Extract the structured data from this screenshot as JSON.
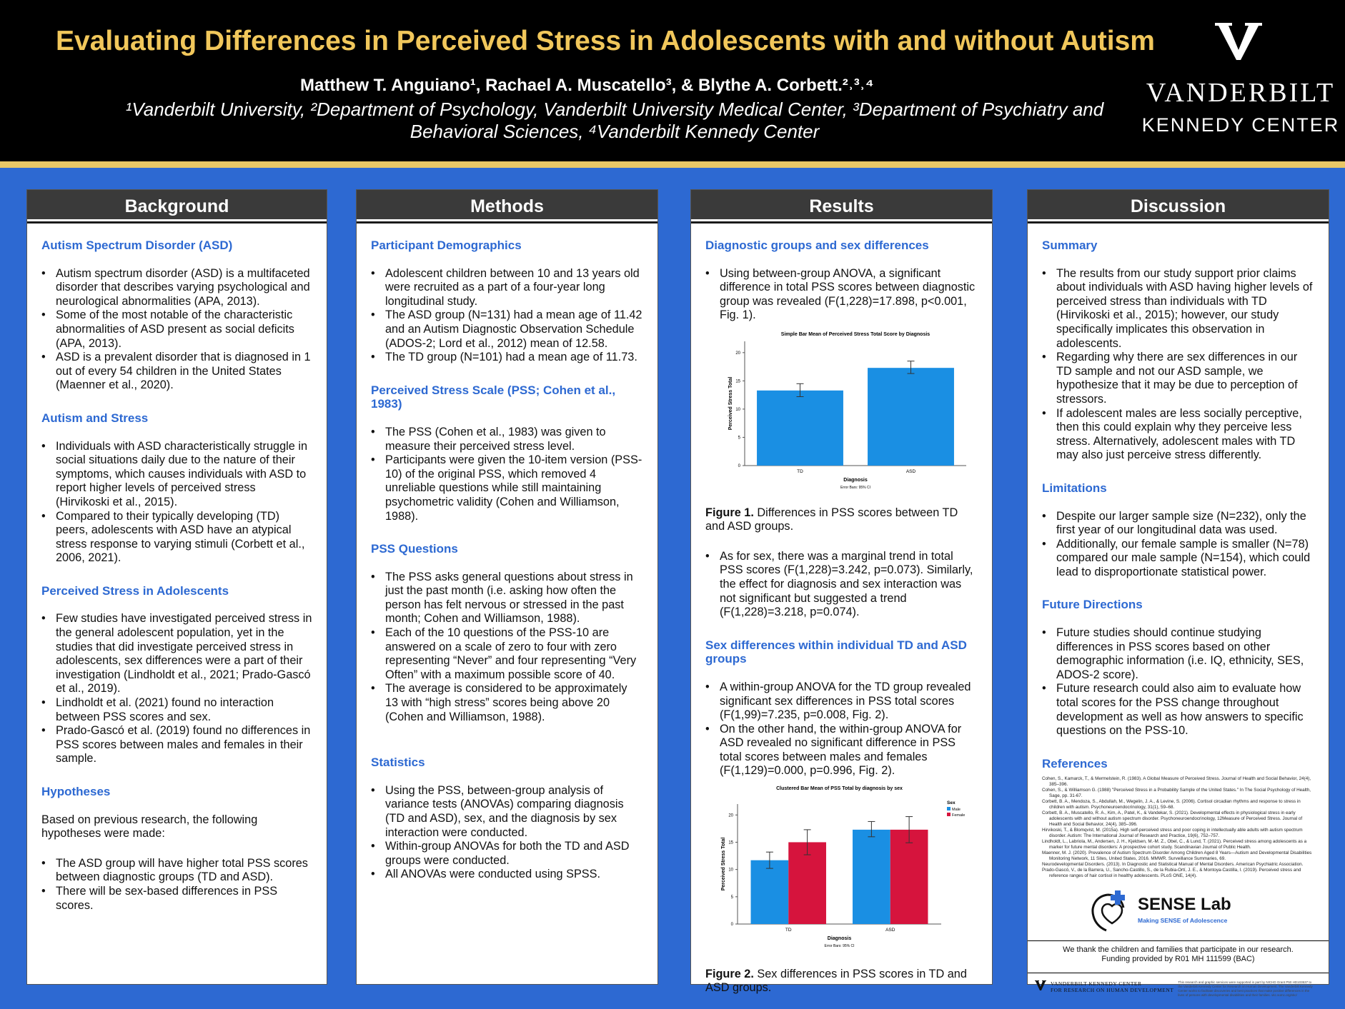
{
  "header": {
    "title": "Evaluating Differences in Perceived Stress in Adolescents with and without Autism",
    "authors": "Matthew T. Anguiano¹, Rachael A. Muscatello³, & Blythe A. Corbett.²˒³˒⁴",
    "affiliations_line1": "¹Vanderbilt University, ²Department of Psychology, Vanderbilt University Medical Center, ³Department of Psychiatry and",
    "affiliations_line2": "Behavioral Sciences, ⁴Vanderbilt Kennedy Center",
    "logo_name": "VANDERBILT",
    "logo_center": "KENNEDY CENTER",
    "logo_icon": "vanderbilt-v-oak-leaf-icon"
  },
  "background": {
    "heading": "Background",
    "sections": [
      {
        "title": "Autism Spectrum Disorder (ASD)",
        "bullets": [
          "Autism spectrum disorder (ASD) is a multifaceted disorder that describes varying psychological and neurological abnormalities (APA, 2013).",
          "Some of the most notable of the characteristic abnormalities of ASD present as social deficits (APA, 2013).",
          "ASD is a prevalent disorder that is diagnosed in 1 out of every 54 children in the United States (Maenner et al., 2020)."
        ]
      },
      {
        "title": "Autism and Stress",
        "bullets": [
          "Individuals with ASD characteristically struggle in social situations daily due to the nature of their symptoms, which causes individuals with ASD to report higher levels of perceived stress (Hirvikoski et al., 2015).",
          "Compared to their typically developing (TD) peers, adolescents with ASD have an atypical stress response to varying stimuli (Corbett et al., 2006, 2021)."
        ]
      },
      {
        "title": "Perceived Stress in Adolescents",
        "bullets": [
          "Few studies have investigated perceived stress in the general adolescent population, yet in the studies that did investigate perceived stress in adolescents, sex differences were a part of their investigation (Lindholdt et al., 2021; Prado-Gascó et al., 2019).",
          "Lindholdt et al. (2021) found no interaction between PSS scores and sex.",
          "Prado-Gascó et al. (2019) found no differences in PSS scores between males and females in their sample."
        ]
      }
    ],
    "hypotheses_title": "Hypotheses",
    "hypotheses_intro": "Based on previous research, the following hypotheses were made:",
    "hypotheses": [
      "The ASD group will have higher total PSS scores between diagnostic groups (TD and ASD).",
      "There will be sex-based differences in PSS scores."
    ]
  },
  "methods": {
    "heading": "Methods",
    "sections": [
      {
        "title": "Participant Demographics",
        "bullets": [
          "Adolescent children between 10 and 13 years old were recruited as a part of a four-year long longitudinal study.",
          "The ASD group (N=131) had a mean age of 11.42 and an Autism Diagnostic Observation Schedule (ADOS-2; Lord et al., 2012) mean of 12.58.",
          "The TD group (N=101) had a mean age of 11.73."
        ]
      },
      {
        "title": "Perceived Stress Scale (PSS; Cohen et al., 1983)",
        "bullets": [
          "The PSS (Cohen et al., 1983) was given to measure their perceived stress level.",
          "Participants were given the 10-item version (PSS-10) of the original PSS, which removed 4 unreliable questions while still maintaining psychometric validity (Cohen and Williamson, 1988)."
        ]
      },
      {
        "title": "PSS Questions",
        "bullets": [
          "The PSS asks general questions about stress in just the past month (i.e. asking how often the person has felt nervous or stressed in the past month; Cohen and Williamson, 1988).",
          "Each of the 10 questions of the PSS-10 are answered on a scale of zero to four with zero representing “Never” and four representing “Very Often” with a maximum possible score of 40.",
          "The average is considered to be approximately 13 with “high stress” scores being above 20 (Cohen and Williamson, 1988)."
        ]
      },
      {
        "title": "Statistics",
        "bullets": [
          "Using the PSS, between-group analysis of variance tests (ANOVAs) comparing diagnosis (TD and ASD), sex, and the diagnosis by sex interaction were conducted.",
          "Within-group ANOVAs for both the TD and ASD groups were conducted.",
          "All ANOVAs were conducted using SPSS."
        ]
      }
    ]
  },
  "results": {
    "heading": "Results",
    "sec1_title": "Diagnostic groups and sex differences",
    "sec1_bullets": [
      "Using between-group ANOVA, a significant difference in total PSS scores between diagnostic group was revealed (F(1,228)=17.898, p<0.001, Fig. 1)."
    ],
    "fig1_label": "Figure 1.",
    "fig1_caption": " Differences in PSS scores between TD and ASD groups.",
    "sec1_bullets_b": [
      "As for sex, there was a marginal trend in total PSS scores (F(1,228)=3.242, p=0.073). Similarly, the effect for diagnosis and sex interaction was not significant but suggested a trend (F(1,228)=3.218, p=0.074)."
    ],
    "sec2_title": "Sex differences within individual TD and ASD groups",
    "sec2_bullets": [
      "A within-group ANOVA for the TD group revealed significant sex differences in PSS total scores (F(1,99)=7.235, p=0.008, Fig. 2).",
      "On the other hand, the within-group ANOVA for ASD revealed no significant difference in PSS total scores between males and females (F(1,129)=0.000, p=0.996, Fig. 2)."
    ],
    "fig2_label": "Figure 2.",
    "fig2_caption": " Sex differences in PSS scores in TD and ASD groups."
  },
  "chart_data": [
    {
      "type": "bar",
      "title": "Simple Bar Mean of Perceived Stress Total Score by Diagnosis",
      "xlabel": "Diagnosis",
      "ylabel": "Perceived Stress Total",
      "note": "Error Bars: 95% CI",
      "categories": [
        "TD",
        "ASD"
      ],
      "values": [
        13.3,
        17.3
      ],
      "ci_low": [
        12.2,
        16.3
      ],
      "ci_high": [
        14.5,
        18.5
      ],
      "ylim": [
        0,
        22
      ],
      "yticks": [
        0,
        5,
        10,
        15,
        20
      ],
      "color": "#1a8fe3"
    },
    {
      "type": "bar",
      "title": "Clustered Bar Mean of PSS Total by diagnosis by sex",
      "xlabel": "Diagnosis",
      "ylabel": "Perceived Stress Total",
      "note": "Error Bars: 95% CI",
      "categories": [
        "TD",
        "ASD"
      ],
      "legend_title": "Sex",
      "series": [
        {
          "name": "Male",
          "values": [
            11.7,
            17.3
          ],
          "ci_low": [
            10.2,
            16.0
          ],
          "ci_high": [
            13.2,
            18.8
          ],
          "color": "#1a8fe3"
        },
        {
          "name": "Female",
          "values": [
            15.0,
            17.3
          ],
          "ci_low": [
            12.7,
            14.9
          ],
          "ci_high": [
            17.3,
            19.7
          ],
          "color": "#d6143d"
        }
      ],
      "ylim": [
        0,
        22
      ],
      "yticks": [
        0,
        5,
        10,
        15,
        20
      ]
    }
  ],
  "discussion": {
    "heading": "Discussion",
    "sections": [
      {
        "title": "Summary",
        "bullets": [
          "The results from our study support prior claims about individuals with ASD having higher levels of perceived stress than individuals with TD (Hirvikoski et al., 2015); however, our study specifically implicates this observation in adolescents.",
          "Regarding why there are sex differences in our TD sample and not our ASD sample, we hypothesize that it may be due to perception of stressors.",
          "If adolescent males are less socially perceptive, then this could explain why they perceive less stress. Alternatively, adolescent males with TD may also just perceive stress differently."
        ]
      },
      {
        "title": "Limitations",
        "bullets": [
          "Despite our larger sample size (N=232), only the first year of our longitudinal data was used.",
          "Additionally, our female sample is smaller (N=78) compared our male sample (N=154), which could lead to disproportionate statistical power."
        ]
      },
      {
        "title": "Future Directions",
        "bullets": [
          "Future studies should continue studying differences in PSS scores based on other demographic information (i.e. IQ, ethnicity, SES, ADOS-2 score).",
          "Future research could also aim to evaluate how total scores for the PSS change throughout development as well as how answers to specific questions on the PSS-10."
        ]
      }
    ],
    "refs_title": "References",
    "references": [
      "Cohen, S., Kamarck, T., & Mermelstein, R. (1983). A Global Measure of Perceived Stress. Journal of Health and Social Behavior, 24(4), 385–396.",
      "Cohen, S., & Williamson G. (1988) \"Perceived Stress in a Probability Sample of the United States.\" In The Social Psychology of Health, Sage, pp. 31-67.",
      "Corbett, B. A., Mendoza, S., Abdullah, M., Wegelin, J. A., & Levine, S. (2006). Cortisol circadian rhythms and response to stress in children with autism. Psychoneuroendocrinology, 31(1), 59–68.",
      "Corbett, B. A., Muscatello, R. A., Kim, A., Patel, K., & Vandekar, S. (2021). Developmental effects in physiological stress in early adolescents with and without autism spectrum disorder. Psychoneuroendocrinology, 12Measure of Perceived Stress. Journal of Health and Social Behavior, 24(4), 385–396.",
      "Hirvikoski, T., & Blomqvist, M. (2015a). High self-perceived stress and poor coping in intellectually able adults with autism spectrum disorder. Autism: The International Journal of Research and Practice, 19(6), 752–757.",
      "Lindholdt, L., Labriola, M., Andersen, J. H., Kjeldsen, M.-M. Z., Obel, C., & Lund, T. (2021). Perceived stress among adolescents as a marker for future mental disorders: A prospective cohort study. Scandinavian Journal of Public Health.",
      "Maenner, M. J. (2020). Prevalence of Autism Spectrum Disorder Among Children Aged 8 Years—Autism and Developmental Disabilities Monitoring Network, 11 Sites, United States, 2016. MMWR. Surveillance Summaries, 69.",
      "Neurodevelopmental Disorders. (2013). In Diagnostic and Statistical Manual of Mental Disorders. American Psychiatric Association.",
      "Prado-Gascó, V., de la Barrera, U., Sancho-Castillo, S., de la Rubia-Ortí, J. E., & Montoya-Castilla, I. (2019). Perceived stress and reference ranges of hair cortisol in healthy adolescents. PLoS ONE, 14(4)."
    ],
    "lab_name": "SENSE Lab",
    "lab_tagline": "Making SENSE of Adolescence",
    "thanks_line1": "We thank the children and families that participate in our research.",
    "thanks_line2": "Funding provided by R01 MH 111599 (BAC)",
    "vkc_line1": "VANDERBILT KENNEDY CENTER",
    "vkc_line2": "FOR RESEARCH ON HUMAN DEVELOPMENT",
    "vkc_fine": "This research and graphic services were supported in part by NICHD Grant P50 HD103537 to the Vanderbilt Kennedy Center for Research on Human Development. The Vanderbilt Kennedy Center works to facilitate discoveries and best practices that make positive differences in the lives of persons with developmental disabilities and their families. vkc.vumc.org/vkc/"
  }
}
